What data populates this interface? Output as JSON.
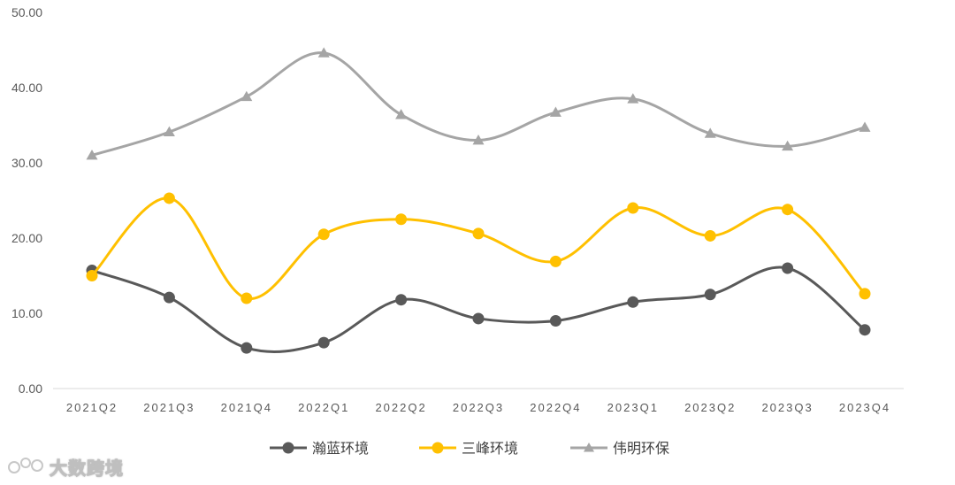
{
  "chart_data": {
    "type": "line",
    "title": "",
    "xlabel": "",
    "ylabel": "",
    "categories": [
      "2021Q2",
      "2021Q3",
      "2021Q4",
      "2022Q1",
      "2022Q2",
      "2022Q3",
      "2022Q4",
      "2023Q1",
      "2023Q2",
      "2023Q3",
      "2023Q4"
    ],
    "ylim": [
      0,
      50
    ],
    "yticks": [
      "0.00",
      "10.00",
      "20.00",
      "30.00",
      "40.00",
      "50.00"
    ],
    "grid": false,
    "smooth": true,
    "legend_position": "bottom",
    "series": [
      {
        "name": "瀚蓝环境",
        "color": "#595959",
        "marker": "circle",
        "values": [
          15.7,
          12.1,
          5.4,
          6.1,
          11.8,
          9.3,
          9.0,
          11.5,
          12.5,
          16.0,
          7.8
        ]
      },
      {
        "name": "三峰环境",
        "color": "#FFC000",
        "marker": "circle",
        "values": [
          15.0,
          25.3,
          12.0,
          20.5,
          22.5,
          20.6,
          16.9,
          24.0,
          20.3,
          23.8,
          12.6
        ]
      },
      {
        "name": "伟明环保",
        "color": "#A5A5A5",
        "marker": "triangle",
        "values": [
          31.0,
          34.1,
          38.8,
          44.6,
          36.4,
          33.0,
          36.7,
          38.5,
          33.9,
          32.2,
          34.7
        ]
      }
    ]
  },
  "watermark": {
    "text": "大数跨境"
  }
}
